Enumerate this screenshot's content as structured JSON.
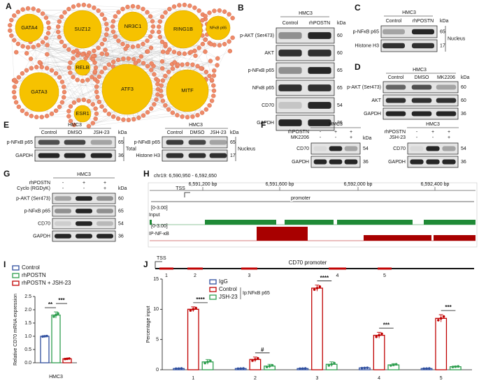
{
  "letters": [
    "A",
    "B",
    "C",
    "D",
    "E",
    "F",
    "G",
    "H",
    "I",
    "J"
  ],
  "network": {
    "hubs": [
      "GATA4",
      "SUZ12",
      "NR3C1",
      "RING1B",
      "NFκB p65",
      "RELB",
      "GATA3",
      "ATF3",
      "MITF",
      "ESR1"
    ]
  },
  "blots": [
    {
      "cell": "HMC3",
      "columns": [
        "Control",
        "rhPOSTN"
      ],
      "unit": "kDa",
      "rows": [
        {
          "label": "p-AKT (Ser473)",
          "kda": 60
        },
        {
          "label": "AKT",
          "kda": 60
        },
        {
          "label": "p-NFκB p65",
          "kda": 65
        },
        {
          "label": "NFκB p65",
          "kda": 65
        },
        {
          "label": "CD70",
          "kda": 54
        },
        {
          "label": "GAPDH",
          "kda": 36
        }
      ]
    },
    {
      "cell": "HMC3",
      "columns": [
        "Control",
        "rhPOSTN"
      ],
      "unit": "kDa",
      "side": "Nucleus",
      "rows": [
        {
          "label": "p-NFκB p65",
          "kda": 65
        },
        {
          "label": "Histone H3",
          "kda": 17
        }
      ]
    },
    {
      "cell": "HMC3",
      "columns": [
        "Control",
        "DMSO",
        "MK2206"
      ],
      "unit": "kDa",
      "rows": [
        {
          "label": "p-AKT (Ser473)",
          "kda": 60
        },
        {
          "label": "AKT",
          "kda": 60
        },
        {
          "label": "GAPDH",
          "kda": 36
        }
      ]
    },
    {
      "cell": "HMC3",
      "columns": [
        "Control",
        "DMSO",
        "JSH-23"
      ],
      "unit": "kDa",
      "side": "Total",
      "rows": [
        {
          "label": "p-NFκB p65",
          "kda": 65
        },
        {
          "label": "GAPDH",
          "kda": 36
        }
      ]
    },
    {
      "cell": "HMC3",
      "columns": [
        "Control",
        "DMSO",
        "JSH-23"
      ],
      "unit": "kDa",
      "side": "Nucleus",
      "rows": [
        {
          "label": "p-NFκB p65",
          "kda": 65
        },
        {
          "label": "Histone H3",
          "kda": 17
        }
      ]
    },
    {
      "cell": "HMC3",
      "treatments": [
        {
          "label": "rhPOSTN",
          "signs": [
            "-",
            "+",
            "+"
          ]
        },
        {
          "label": "MK2206",
          "signs": [
            "-",
            "-",
            "+"
          ]
        }
      ],
      "unit": "kDa",
      "rows": [
        {
          "label": "CD70",
          "kda": 54
        },
        {
          "label": "GAPDH",
          "kda": 36
        }
      ]
    },
    {
      "cell": "HMC3",
      "treatments": [
        {
          "label": "rhPOSTN",
          "signs": [
            "-",
            "+",
            "+"
          ]
        },
        {
          "label": "JSH-23",
          "signs": [
            "-",
            "-",
            "+"
          ]
        }
      ],
      "rows": [
        {
          "label": "CD70",
          "kda": 54
        },
        {
          "label": "GAPDH",
          "kda": 36
        }
      ]
    },
    {
      "cell": "HMC3",
      "treatments": [
        {
          "label": "rhPOSTN",
          "signs": [
            "-",
            "+",
            "+"
          ]
        },
        {
          "label": "Cyclo (RGDyK)",
          "signs": [
            "-",
            "-",
            "+"
          ]
        }
      ],
      "unit": "kDa",
      "rows": [
        {
          "label": "p-AKT (Ser473)",
          "kda": 60
        },
        {
          "label": "p-NFκB p65",
          "kda": 65
        },
        {
          "label": "CD70",
          "kda": 54
        },
        {
          "label": "GAPDH",
          "kda": 36
        }
      ]
    }
  ],
  "track": {
    "region": "chr19: 6,590,950 - 6,592,650",
    "ticks": [
      "6,591,200 bp",
      "6,591,600 bp",
      "6,592,000 bp",
      "6,592,400 bp"
    ],
    "tss": "TSS",
    "feature": "promoter",
    "tracks": [
      {
        "name": "Input",
        "range": "[0-3.00]"
      },
      {
        "name": "IP-NF-κB",
        "range": "[0-3.00]"
      }
    ]
  },
  "chart_data": [
    {
      "type": "bar",
      "categories": [
        "HMC3"
      ],
      "ylabel": "Relative CD70 mRNA expression",
      "series": [
        {
          "name": "Control",
          "color": "#2f4f9f",
          "values": [
            1.0
          ],
          "errors": [
            0.02
          ]
        },
        {
          "name": "rhPOSTN",
          "color": "#2e9e4f",
          "values": [
            1.8
          ],
          "errors": [
            0.12
          ]
        },
        {
          "name": "rhPOSTN + JSH-23",
          "color": "#c00000",
          "values": [
            0.15
          ],
          "errors": [
            0.02
          ]
        }
      ],
      "ylim": [
        0,
        2.5
      ],
      "yticks": [
        {
          "value": 0,
          "label": "0.0"
        },
        0.5,
        {
          "value": 1,
          "label": "1.0"
        },
        1.5,
        {
          "value": 2,
          "label": "2.0"
        },
        2.5
      ],
      "annotations": [
        "**",
        "***"
      ]
    },
    {
      "type": "bar",
      "categories": [
        "1",
        "2",
        "3",
        "4",
        "5"
      ],
      "ylabel": "Percentage input",
      "legend_title": "Ip:NFκB p65",
      "promoter": {
        "title": "CD70 promoter",
        "tss": "TSS"
      },
      "series": [
        {
          "name": "IgG",
          "color": "#2f4f9f",
          "values": [
            0.2,
            0.2,
            0.2,
            0.3,
            0.2
          ],
          "errors": [
            0.05,
            0.05,
            0.05,
            0.05,
            0.05
          ]
        },
        {
          "name": "Control",
          "color": "#c00000",
          "values": [
            10,
            1.7,
            13.5,
            5.7,
            8.5
          ],
          "errors": [
            0.4,
            0.4,
            0.5,
            0.5,
            0.6
          ]
        },
        {
          "name": "JSH-23",
          "color": "#2e9e4f",
          "values": [
            1.3,
            0.6,
            0.9,
            0.8,
            0.5
          ],
          "errors": [
            0.4,
            0.3,
            0.4,
            0.2,
            0.1
          ]
        }
      ],
      "ylim": [
        0,
        15
      ],
      "yticks": [
        0,
        5,
        10,
        15
      ],
      "annotations": [
        "****",
        "#",
        "****",
        "***",
        "***"
      ]
    }
  ]
}
